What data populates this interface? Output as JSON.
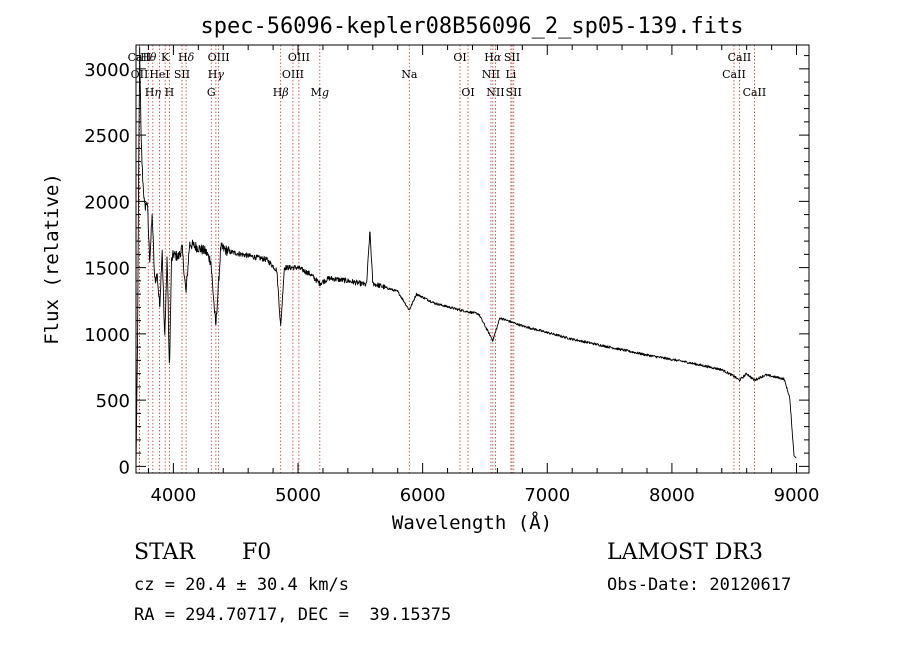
{
  "chart_data": {
    "type": "line",
    "title": "spec-56096-kepler08B56096_2_sp05-139.fits",
    "xlabel": "Wavelength (Å)",
    "ylabel": "Flux (relative)",
    "xlim": [
      3700,
      9100
    ],
    "ylim": [
      -50,
      3180
    ],
    "x_ticks": [
      {
        "value": 4000,
        "label": "4000"
      },
      {
        "value": 5000,
        "label": "5000"
      },
      {
        "value": 6000,
        "label": "6000"
      },
      {
        "value": 7000,
        "label": "7000"
      },
      {
        "value": 8000,
        "label": "8000"
      },
      {
        "value": 9000,
        "label": "9000"
      }
    ],
    "y_ticks": [
      {
        "value": 0,
        "label": "0"
      },
      {
        "value": 500,
        "label": "500"
      },
      {
        "value": 1000,
        "label": "1000"
      },
      {
        "value": 1500,
        "label": "1500"
      },
      {
        "value": 2000,
        "label": "2000"
      },
      {
        "value": 2500,
        "label": "2500"
      },
      {
        "value": 3000,
        "label": "3000"
      }
    ],
    "spectrum_anchors": [
      [
        3700,
        0
      ],
      [
        3712,
        900
      ],
      [
        3722,
        2300
      ],
      [
        3730,
        3150
      ],
      [
        3740,
        2500
      ],
      [
        3752,
        2200
      ],
      [
        3770,
        1950
      ],
      [
        3790,
        2000
      ],
      [
        3810,
        1550
      ],
      [
        3830,
        1900
      ],
      [
        3850,
        1400
      ],
      [
        3870,
        1450
      ],
      [
        3890,
        1200
      ],
      [
        3910,
        1650
      ],
      [
        3930,
        950
      ],
      [
        3950,
        1600
      ],
      [
        3968,
        700
      ],
      [
        3985,
        1550
      ],
      [
        4000,
        1600
      ],
      [
        4040,
        1580
      ],
      [
        4070,
        1650
      ],
      [
        4101,
        1300
      ],
      [
        4130,
        1680
      ],
      [
        4200,
        1650
      ],
      [
        4260,
        1620
      ],
      [
        4300,
        1550
      ],
      [
        4340,
        1050
      ],
      [
        4380,
        1650
      ],
      [
        4450,
        1620
      ],
      [
        4550,
        1600
      ],
      [
        4650,
        1580
      ],
      [
        4750,
        1560
      ],
      [
        4830,
        1480
      ],
      [
        4861,
        1050
      ],
      [
        4890,
        1500
      ],
      [
        5000,
        1500
      ],
      [
        5100,
        1450
      ],
      [
        5173,
        1380
      ],
      [
        5250,
        1420
      ],
      [
        5400,
        1400
      ],
      [
        5550,
        1370
      ],
      [
        5577,
        1780
      ],
      [
        5600,
        1380
      ],
      [
        5800,
        1320
      ],
      [
        5893,
        1180
      ],
      [
        5950,
        1300
      ],
      [
        6100,
        1230
      ],
      [
        6300,
        1180
      ],
      [
        6450,
        1150
      ],
      [
        6563,
        950
      ],
      [
        6620,
        1120
      ],
      [
        6800,
        1060
      ],
      [
        7000,
        1010
      ],
      [
        7200,
        960
      ],
      [
        7500,
        900
      ],
      [
        7800,
        840
      ],
      [
        8100,
        790
      ],
      [
        8400,
        730
      ],
      [
        8498,
        680
      ],
      [
        8542,
        650
      ],
      [
        8600,
        700
      ],
      [
        8662,
        650
      ],
      [
        8750,
        690
      ],
      [
        8900,
        660
      ],
      [
        8945,
        520
      ],
      [
        8980,
        80
      ],
      [
        9000,
        60
      ]
    ],
    "lines": [
      {
        "label": "CaII",
        "label_html": "CaII",
        "wavelength": 3728,
        "row": 0
      },
      {
        "label": "OII",
        "label_html": "OII",
        "wavelength": 3728,
        "row": 1
      },
      {
        "label": "Hθ",
        "label_html": "H<tspan font-style='italic'>θ</tspan>",
        "wavelength": 3798,
        "row": 0
      },
      {
        "label": "Hη",
        "label_html": "H<tspan font-style='italic'>η</tspan>",
        "wavelength": 3835,
        "row": 2
      },
      {
        "label": "HeI",
        "label_html": "HeI",
        "wavelength": 3889,
        "row": 1
      },
      {
        "label": "K",
        "label_html": "K",
        "wavelength": 3934,
        "row": 0
      },
      {
        "label": "H",
        "label_html": "H",
        "wavelength": 3968,
        "row": 2
      },
      {
        "label": "SII",
        "label_html": "SII",
        "wavelength": 4069,
        "row": 1
      },
      {
        "label": "Hδ",
        "label_html": "H<tspan font-style='italic'>δ</tspan>",
        "wavelength": 4102,
        "row": 0
      },
      {
        "label": "G",
        "label_html": "G",
        "wavelength": 4304,
        "row": 2
      },
      {
        "label": "OIII",
        "label_html": "OIII",
        "wavelength": 4363,
        "row": 0
      },
      {
        "label": "Hγ",
        "label_html": "H<tspan font-style='italic'>γ</tspan>",
        "wavelength": 4341,
        "row": 1
      },
      {
        "label": "Hβ",
        "label_html": "H<tspan font-style='italic'>β</tspan>",
        "wavelength": 4861,
        "row": 2
      },
      {
        "label": "OIII",
        "label_html": "OIII",
        "wavelength": 5007,
        "row": 0
      },
      {
        "label": "OIII",
        "label_html": "OIII",
        "wavelength": 4959,
        "row": 1
      },
      {
        "label": "Mg",
        "label_html": "M<tspan font-style='italic'>g</tspan>",
        "wavelength": 5175,
        "row": 2
      },
      {
        "label": "Na",
        "label_html": "Na",
        "wavelength": 5893,
        "row": 1
      },
      {
        "label": "OI",
        "label_html": "OI",
        "wavelength": 6300,
        "row": 0
      },
      {
        "label": "OI",
        "label_html": "OI",
        "wavelength": 6364,
        "row": 2
      },
      {
        "label": "Hα",
        "label_html": "H<tspan font-style='italic'>α</tspan>",
        "wavelength": 6563,
        "row": 0
      },
      {
        "label": "NII",
        "label_html": "NII",
        "wavelength": 6548,
        "row": 1
      },
      {
        "label": "NII",
        "label_html": "NII",
        "wavelength": 6584,
        "row": 2
      },
      {
        "label": "SII",
        "label_html": "SII",
        "wavelength": 6717,
        "row": 0
      },
      {
        "label": "Li",
        "label_html": "Li",
        "wavelength": 6708,
        "row": 1
      },
      {
        "label": "SII",
        "label_html": "SII",
        "wavelength": 6731,
        "row": 2
      },
      {
        "label": "CaII",
        "label_html": "CaII",
        "wavelength": 8542,
        "row": 0
      },
      {
        "label": "CaII",
        "label_html": "CaII",
        "wavelength": 8498,
        "row": 1
      },
      {
        "label": "CaII",
        "label_html": "CaII",
        "wavelength": 8662,
        "row": 2
      }
    ]
  },
  "info": {
    "object_class": "STAR",
    "subclass": "F0",
    "survey": "LAMOST DR3",
    "redshift_line": "cz = 20.4 ± 30.4 km/s",
    "obs_date": "Obs-Date: 20120617",
    "coords": "RA = 294.70717, DEC =  39.15375"
  },
  "colors": {
    "spectrum": "#000000",
    "line_marker": "#c0392b",
    "text": "#000000",
    "background": "#ffffff"
  }
}
